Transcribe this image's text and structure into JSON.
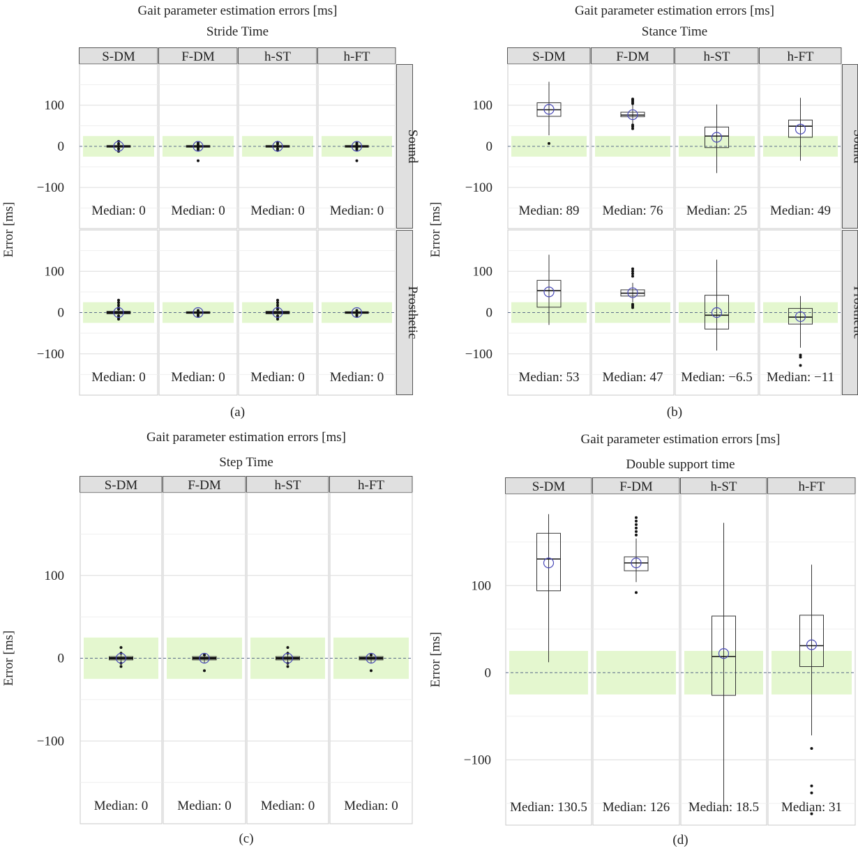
{
  "chart_data": [
    {
      "id": "a",
      "type": "boxplot",
      "title": "Gait parameter estimation errors [ms]",
      "subtitle": "Stride Time",
      "ylabel": "Error [ms]",
      "ylim": [
        -200,
        200
      ],
      "yticks": [
        -100,
        0,
        100
      ],
      "tolerance_band": [
        -25,
        25
      ],
      "columns": [
        "S-DM",
        "F-DM",
        "h-ST",
        "h-FT"
      ],
      "rows": [
        "Sound",
        "Prosthetic"
      ],
      "panel_label": "(a)",
      "annotation_prefix": "Median: ",
      "panels": [
        [
          {
            "median": 0,
            "label": "0",
            "mean": 0,
            "q1": -2,
            "q3": 2,
            "whisker_low": -8,
            "whisker_high": 8,
            "outliers": [
              -12,
              -6,
              6,
              12
            ]
          },
          {
            "median": 0,
            "label": "0",
            "mean": 0,
            "q1": -2,
            "q3": 2,
            "whisker_low": -8,
            "whisker_high": 8,
            "outliers": [
              -8,
              -4,
              4,
              8,
              -35
            ]
          },
          {
            "median": 0,
            "label": "0",
            "mean": 0,
            "q1": -2,
            "q3": 2,
            "whisker_low": -8,
            "whisker_high": 8,
            "outliers": [
              -10,
              -6,
              6,
              10
            ]
          },
          {
            "median": 0,
            "label": "0",
            "mean": 0,
            "q1": -2,
            "q3": 2,
            "whisker_low": -8,
            "whisker_high": 8,
            "outliers": [
              -8,
              -4,
              4,
              8,
              -35
            ]
          }
        ],
        [
          {
            "median": 0,
            "label": "0",
            "mean": 0,
            "q1": -3,
            "q3": 3,
            "whisker_low": -10,
            "whisker_high": 10,
            "outliers": [
              -16,
              -12,
              -8,
              8,
              12,
              18,
              24,
              30
            ]
          },
          {
            "median": 0,
            "label": "0",
            "mean": 0,
            "q1": -2,
            "q3": 2,
            "whisker_low": -6,
            "whisker_high": 6,
            "outliers": [
              -8,
              -5,
              5
            ]
          },
          {
            "median": 0,
            "label": "0",
            "mean": 0,
            "q1": -3,
            "q3": 3,
            "whisker_low": -10,
            "whisker_high": 10,
            "outliers": [
              -16,
              -12,
              -8,
              8,
              12,
              18,
              24,
              30
            ]
          },
          {
            "median": 0,
            "label": "0",
            "mean": 0,
            "q1": -2,
            "q3": 2,
            "whisker_low": -6,
            "whisker_high": 6,
            "outliers": [
              -8,
              -5,
              5
            ]
          }
        ]
      ]
    },
    {
      "id": "b",
      "type": "boxplot",
      "title": "Gait parameter estimation errors [ms]",
      "subtitle": "Stance Time",
      "ylabel": "Error [ms]",
      "ylim": [
        -200,
        200
      ],
      "yticks": [
        -100,
        0,
        100
      ],
      "tolerance_band": [
        -25,
        25
      ],
      "columns": [
        "S-DM",
        "F-DM",
        "h-ST",
        "h-FT"
      ],
      "rows": [
        "Sound",
        "Prosthetic"
      ],
      "panel_label": "(b)",
      "annotation_prefix": "Median: ",
      "panels": [
        [
          {
            "median": 89,
            "label": "89",
            "mean": 90,
            "q1": 73,
            "q3": 106,
            "whisker_low": 27,
            "whisker_high": 157,
            "outliers": [
              7
            ]
          },
          {
            "median": 76,
            "label": "76",
            "mean": 77,
            "q1": 72,
            "q3": 83,
            "whisker_low": 55,
            "whisker_high": 102,
            "outliers": [
              43,
              48,
              52,
              104,
              108,
              112,
              115
            ]
          },
          {
            "median": 25,
            "label": "25",
            "mean": 22,
            "q1": -3,
            "q3": 47,
            "whisker_low": -65,
            "whisker_high": 102,
            "outliers": []
          },
          {
            "median": 49,
            "label": "49",
            "mean": 42,
            "q1": 22,
            "q3": 64,
            "whisker_low": -35,
            "whisker_high": 118,
            "outliers": []
          }
        ],
        [
          {
            "median": 53,
            "label": "53",
            "mean": 50,
            "q1": 13,
            "q3": 78,
            "whisker_low": -30,
            "whisker_high": 140,
            "outliers": []
          },
          {
            "median": 47,
            "label": "47",
            "mean": 48,
            "q1": 40,
            "q3": 55,
            "whisker_low": 25,
            "whisker_high": 72,
            "outliers": [
              12,
              16,
              20,
              88,
              94,
              100,
              106
            ]
          },
          {
            "median": -6.5,
            "label": "−6.5",
            "mean": 0,
            "q1": -40,
            "q3": 42,
            "whisker_low": -92,
            "whisker_high": 128,
            "outliers": []
          },
          {
            "median": -11,
            "label": "−11",
            "mean": -10,
            "q1": -28,
            "q3": 10,
            "whisker_low": -85,
            "whisker_high": 40,
            "outliers": [
              -103,
              -108,
              -128
            ]
          }
        ]
      ]
    },
    {
      "id": "c",
      "type": "boxplot",
      "title": "Gait parameter estimation errors [ms]",
      "subtitle": "Step Time",
      "ylabel": "Error [ms]",
      "ylim": [
        -200,
        200
      ],
      "yticks": [
        -100,
        0,
        100
      ],
      "tolerance_band": [
        -25,
        25
      ],
      "columns": [
        "S-DM",
        "F-DM",
        "h-ST",
        "h-FT"
      ],
      "panel_label": "(c)",
      "annotation_prefix": "Median: ",
      "panels": [
        {
          "median": 0,
          "label": "0",
          "mean": 0,
          "q1": -2,
          "q3": 2,
          "whisker_low": -8,
          "whisker_high": 8,
          "outliers": [
            -10,
            -6,
            6,
            13
          ]
        },
        {
          "median": 0,
          "label": "0",
          "mean": 0,
          "q1": -2,
          "q3": 2,
          "whisker_low": -6,
          "whisker_high": 6,
          "outliers": [
            -15,
            4
          ]
        },
        {
          "median": 0,
          "label": "0",
          "mean": 0,
          "q1": -2,
          "q3": 2,
          "whisker_low": -8,
          "whisker_high": 8,
          "outliers": [
            -10,
            -6,
            6,
            13
          ]
        },
        {
          "median": 0,
          "label": "0",
          "mean": 0,
          "q1": -2,
          "q3": 2,
          "whisker_low": -6,
          "whisker_high": 6,
          "outliers": [
            -15,
            4
          ]
        }
      ]
    },
    {
      "id": "d",
      "type": "boxplot",
      "title": "Gait parameter estimation errors [ms]",
      "subtitle": "Double support time",
      "ylabel": "Error [ms]",
      "ylim": [
        -175,
        205
      ],
      "yticks": [
        -100,
        0,
        100
      ],
      "tolerance_band": [
        -25,
        25
      ],
      "columns": [
        "S-DM",
        "F-DM",
        "h-ST",
        "h-FT"
      ],
      "panel_label": "(d)",
      "annotation_prefix": "Median: ",
      "panels": [
        {
          "median": 130.5,
          "label": "130.5",
          "mean": 126,
          "q1": 94,
          "q3": 160,
          "whisker_low": 12,
          "whisker_high": 182,
          "outliers": []
        },
        {
          "median": 126,
          "label": "126",
          "mean": 126,
          "q1": 117,
          "q3": 133,
          "whisker_low": 104,
          "whisker_high": 154,
          "outliers": [
            92,
            158,
            162,
            166,
            170,
            174,
            178
          ]
        },
        {
          "median": 18.5,
          "label": "18.5",
          "mean": 22,
          "q1": -26,
          "q3": 65,
          "whisker_low": -160,
          "whisker_high": 172,
          "outliers": []
        },
        {
          "median": 31,
          "label": "31",
          "mean": 32,
          "q1": 7,
          "q3": 66,
          "whisker_low": -72,
          "whisker_high": 124,
          "outliers": [
            -87,
            -130,
            -138,
            -162
          ]
        }
      ]
    }
  ],
  "colors": {
    "band": "#e4f7cf",
    "strip": "#e0e0e0",
    "grid_major": "#dcdcdc",
    "grid_minor": "#efefef",
    "mean_marker": "#4a4ab8",
    "zero_line": "#5a6b88",
    "text": "#222222"
  }
}
